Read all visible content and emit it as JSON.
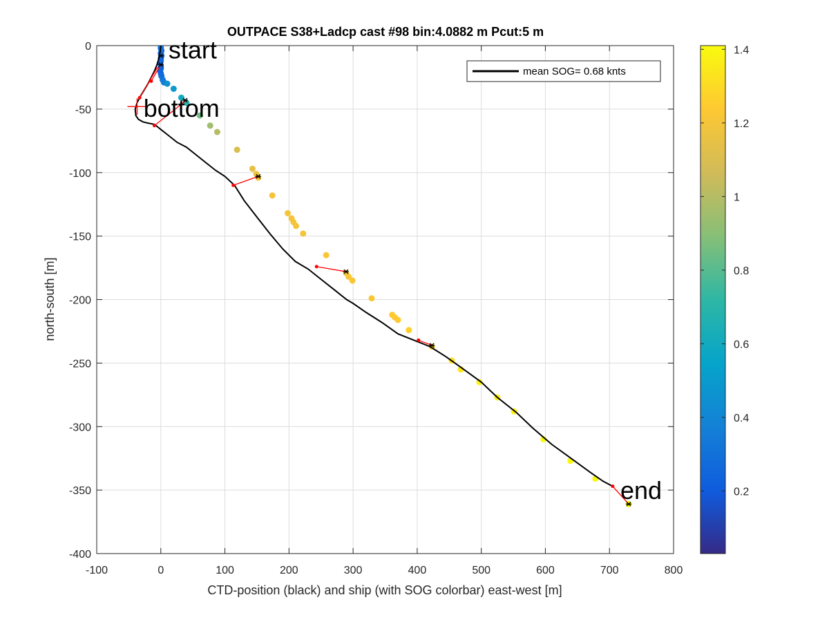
{
  "chart_data": {
    "type": "scatter",
    "title": "OUTPACE S38+Ladcp cast #98 bin:4.0882 m  Pcut:5 m",
    "xlabel": "CTD-position (black) and ship (with SOG colorbar) east-west [m]",
    "ylabel": "north-south [m]",
    "xlim": [
      -100,
      800
    ],
    "ylim": [
      -400,
      0
    ],
    "xticks": [
      "-100",
      "0",
      "100",
      "200",
      "300",
      "400",
      "500",
      "600",
      "700",
      "800"
    ],
    "yticks": [
      "-400",
      "-350",
      "-300",
      "-250",
      "-200",
      "-150",
      "-100",
      "-50",
      "0"
    ],
    "grid": true,
    "legend": {
      "label": "mean SOG=  0.68 knts",
      "placement": "top-right"
    },
    "colorbar": {
      "range": [
        0.03,
        1.41
      ],
      "ticks": [
        "0.2",
        "0.4",
        "0.6",
        "0.8",
        "1",
        "1.2",
        "1.4"
      ],
      "colormap": "parula"
    },
    "annotations": [
      {
        "text": "start",
        "x": 12,
        "y": -3
      },
      {
        "text": "bottom",
        "x": -27,
        "y": -49
      },
      {
        "text": "end",
        "x": 717,
        "y": -350
      }
    ],
    "ctd_track": {
      "name": "CTD-position",
      "color": "#000000",
      "x": [
        0,
        -1,
        -3,
        -6,
        -10,
        -15,
        -20,
        -26,
        -32,
        -37,
        -40,
        -39,
        -35,
        -28,
        -20,
        -10,
        0,
        10,
        25,
        40,
        55,
        70,
        85,
        100,
        115,
        130,
        150,
        170,
        190,
        210,
        230,
        250,
        270,
        290,
        300,
        320,
        345,
        370,
        395,
        420,
        445,
        470,
        500,
        525,
        555,
        580,
        610,
        640,
        670,
        690,
        705
      ],
      "y": [
        0,
        -5,
        -10,
        -15,
        -20,
        -25,
        -30,
        -35,
        -40,
        -45,
        -50,
        -55,
        -58,
        -60,
        -61,
        -62,
        -66,
        -70,
        -76,
        -80,
        -86,
        -92,
        -98,
        -103,
        -110,
        -122,
        -135,
        -148,
        -160,
        -170,
        -176,
        -184,
        -192,
        -200,
        -203,
        -210,
        -218,
        -227,
        -232,
        -237,
        -245,
        -254,
        -265,
        -277,
        -289,
        -301,
        -314,
        -325,
        -336,
        -343,
        -347
      ]
    },
    "ship_track": {
      "name": "ship (with SOG colorbar)",
      "points": [
        {
          "x": 0,
          "y": 0,
          "sog": 0.3
        },
        {
          "x": 0,
          "y": -2,
          "sog": 0.3
        },
        {
          "x": 1,
          "y": -4,
          "sog": 0.3
        },
        {
          "x": 0,
          "y": -6,
          "sog": 0.28
        },
        {
          "x": 1,
          "y": -8,
          "sog": 0.28
        },
        {
          "x": 0,
          "y": -10,
          "sog": 0.26
        },
        {
          "x": 0,
          "y": -12,
          "sog": 0.26
        },
        {
          "x": -1,
          "y": -14,
          "sog": 0.25
        },
        {
          "x": 0,
          "y": -16,
          "sog": 0.25
        },
        {
          "x": 0,
          "y": -18,
          "sog": 0.24
        },
        {
          "x": -1,
          "y": -20,
          "sog": 0.24
        },
        {
          "x": 0,
          "y": -22,
          "sog": 0.26
        },
        {
          "x": 1,
          "y": -24,
          "sog": 0.28
        },
        {
          "x": 3,
          "y": -27,
          "sog": 0.32
        },
        {
          "x": 5,
          "y": -29,
          "sog": 0.36
        },
        {
          "x": 10,
          "y": -30,
          "sog": 0.45
        },
        {
          "x": 20,
          "y": -34,
          "sog": 0.5
        },
        {
          "x": 32,
          "y": -41,
          "sog": 0.6
        },
        {
          "x": 40,
          "y": -45,
          "sog": 0.7
        },
        {
          "x": 61,
          "y": -55,
          "sog": 0.85
        },
        {
          "x": 77,
          "y": -63,
          "sog": 0.95
        },
        {
          "x": 88,
          "y": -68,
          "sog": 1.0
        },
        {
          "x": 119,
          "y": -82,
          "sog": 1.1
        },
        {
          "x": 143,
          "y": -97,
          "sog": 1.15
        },
        {
          "x": 149,
          "y": -101,
          "sog": 1.18
        },
        {
          "x": 152,
          "y": -104,
          "sog": 1.2
        },
        {
          "x": 174,
          "y": -118,
          "sog": 1.2
        },
        {
          "x": 198,
          "y": -132,
          "sog": 1.2
        },
        {
          "x": 204,
          "y": -136,
          "sog": 1.2
        },
        {
          "x": 207,
          "y": -139,
          "sog": 1.2
        },
        {
          "x": 211,
          "y": -142,
          "sog": 1.2
        },
        {
          "x": 222,
          "y": -148,
          "sog": 1.2
        },
        {
          "x": 258,
          "y": -165,
          "sog": 1.22
        },
        {
          "x": 289,
          "y": -179,
          "sog": 1.22
        },
        {
          "x": 293,
          "y": -182,
          "sog": 1.22
        },
        {
          "x": 299,
          "y": -185,
          "sog": 1.22
        },
        {
          "x": 329,
          "y": -199,
          "sog": 1.22
        },
        {
          "x": 361,
          "y": -212,
          "sog": 1.24
        },
        {
          "x": 365,
          "y": -214,
          "sog": 1.24
        },
        {
          "x": 370,
          "y": -216,
          "sog": 1.24
        },
        {
          "x": 387,
          "y": -224,
          "sog": 1.26
        },
        {
          "x": 423,
          "y": -237,
          "sog": 1.28
        },
        {
          "x": 454,
          "y": -248,
          "sog": 1.32
        },
        {
          "x": 468,
          "y": -255,
          "sog": 1.34
        },
        {
          "x": 497,
          "y": -265,
          "sog": 1.38
        },
        {
          "x": 525,
          "y": -277,
          "sog": 1.38
        },
        {
          "x": 551,
          "y": -288,
          "sog": 1.38
        },
        {
          "x": 597,
          "y": -310,
          "sog": 1.4
        },
        {
          "x": 639,
          "y": -327,
          "sog": 1.4
        },
        {
          "x": 678,
          "y": -341,
          "sog": 1.4
        },
        {
          "x": 730,
          "y": -361,
          "sog": 1.41
        }
      ]
    },
    "connector_segments": [
      {
        "x1": 0,
        "y1": -15,
        "x2": -15,
        "y2": -28
      },
      {
        "x1": 40,
        "y1": -43,
        "x2": -10,
        "y2": -63
      },
      {
        "x1": -5,
        "y1": -17,
        "x2": -33,
        "y2": -41
      },
      {
        "x1": 152,
        "y1": -103,
        "x2": 113,
        "y2": -110
      },
      {
        "x1": 289,
        "y1": -178,
        "x2": 243,
        "y2": -174
      },
      {
        "x1": 423,
        "y1": -236,
        "x2": 402,
        "y2": -232
      },
      {
        "x1": 730,
        "y1": -361,
        "x2": 705,
        "y2": -347
      }
    ],
    "black_markers": [
      {
        "x": 0,
        "y": -8
      },
      {
        "x": 0,
        "y": -15
      },
      {
        "x": 38,
        "y": -43
      },
      {
        "x": 152,
        "y": -103
      },
      {
        "x": 289,
        "y": -178
      },
      {
        "x": 423,
        "y": -236
      },
      {
        "x": 730,
        "y": -361
      }
    ],
    "red_markers": [
      {
        "x": -15,
        "y": -28
      },
      {
        "x": -33,
        "y": -41
      },
      {
        "x": -10,
        "y": -63
      },
      {
        "x": 113,
        "y": -110
      },
      {
        "x": 243,
        "y": -174
      },
      {
        "x": 402,
        "y": -232
      },
      {
        "x": 705,
        "y": -347
      }
    ],
    "bottom_cross": {
      "x": -37,
      "y": -48
    }
  }
}
